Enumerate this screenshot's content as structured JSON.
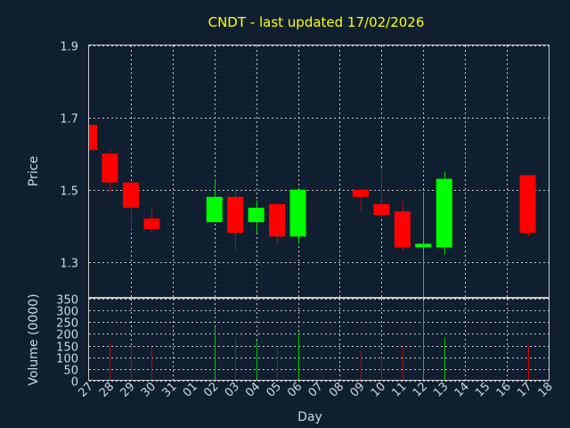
{
  "chart_data": [
    {
      "type": "candlestick",
      "title": "CNDT - last updated 17/02/2026",
      "ylabel": "Price",
      "ylim": [
        1.2,
        1.9
      ],
      "yticks": [
        "1.9",
        "1.7",
        "1.5",
        "1.3"
      ],
      "grid": true,
      "x": [
        "27",
        "28",
        "29",
        "30",
        "31",
        "01",
        "02",
        "03",
        "04",
        "05",
        "06",
        "07",
        "08",
        "09",
        "10",
        "11",
        "12",
        "13",
        "14",
        "15",
        "16",
        "17",
        "18"
      ],
      "candles": [
        {
          "x": "27",
          "open": 1.68,
          "high": 1.68,
          "low": 1.61,
          "close": 1.61
        },
        {
          "x": "28",
          "open": 1.6,
          "high": 1.61,
          "low": 1.49,
          "close": 1.52
        },
        {
          "x": "29",
          "open": 1.52,
          "high": 1.52,
          "low": 1.39,
          "close": 1.45
        },
        {
          "x": "30",
          "open": 1.42,
          "high": 1.45,
          "low": 1.38,
          "close": 1.39
        },
        {
          "x": "02",
          "open": 1.41,
          "high": 1.53,
          "low": 1.41,
          "close": 1.48
        },
        {
          "x": "03",
          "open": 1.48,
          "high": 1.5,
          "low": 1.33,
          "close": 1.38
        },
        {
          "x": "04",
          "open": 1.41,
          "high": 1.47,
          "low": 1.38,
          "close": 1.45
        },
        {
          "x": "05",
          "open": 1.46,
          "high": 1.46,
          "low": 1.35,
          "close": 1.37
        },
        {
          "x": "06",
          "open": 1.37,
          "high": 1.5,
          "low": 1.35,
          "close": 1.5
        },
        {
          "x": "09",
          "open": 1.5,
          "high": 1.5,
          "low": 1.44,
          "close": 1.48
        },
        {
          "x": "10",
          "open": 1.46,
          "high": 1.56,
          "low": 1.42,
          "close": 1.43
        },
        {
          "x": "11",
          "open": 1.44,
          "high": 1.47,
          "low": 1.33,
          "close": 1.34
        },
        {
          "x": "12",
          "open": 1.34,
          "high": 1.49,
          "low": 1.18,
          "close": 1.35
        },
        {
          "x": "13",
          "open": 1.34,
          "high": 1.55,
          "low": 1.32,
          "close": 1.53
        },
        {
          "x": "17",
          "open": 1.54,
          "high": 1.54,
          "low": 1.37,
          "close": 1.38
        }
      ]
    },
    {
      "type": "bar",
      "ylabel": "Volume (0000)",
      "xlabel": "Day",
      "ylim": [
        0,
        350
      ],
      "yticks": [
        "350",
        "300",
        "250",
        "200",
        "150",
        "100",
        "50",
        "0"
      ],
      "x": [
        "27",
        "28",
        "29",
        "30",
        "31",
        "01",
        "02",
        "03",
        "04",
        "05",
        "06",
        "07",
        "08",
        "09",
        "10",
        "11",
        "12",
        "13",
        "14",
        "15",
        "16",
        "17",
        "18"
      ],
      "bars": [
        {
          "x": "27",
          "value": 0,
          "dir": "down"
        },
        {
          "x": "28",
          "value": 165,
          "dir": "down"
        },
        {
          "x": "29",
          "value": 150,
          "dir": "down"
        },
        {
          "x": "30",
          "value": 145,
          "dir": "down"
        },
        {
          "x": "02",
          "value": 230,
          "dir": "up"
        },
        {
          "x": "03",
          "value": 185,
          "dir": "down"
        },
        {
          "x": "04",
          "value": 170,
          "dir": "up"
        },
        {
          "x": "05",
          "value": 140,
          "dir": "down"
        },
        {
          "x": "06",
          "value": 205,
          "dir": "up"
        },
        {
          "x": "09",
          "value": 125,
          "dir": "down"
        },
        {
          "x": "10",
          "value": 100,
          "dir": "down"
        },
        {
          "x": "11",
          "value": 150,
          "dir": "down"
        },
        {
          "x": "12",
          "value": 340,
          "dir": "up"
        },
        {
          "x": "13",
          "value": 185,
          "dir": "up"
        },
        {
          "x": "17",
          "value": 150,
          "dir": "down"
        }
      ]
    }
  ],
  "colors": {
    "background": "#0f1f2f",
    "title": "#ffff00",
    "up": "#00ff00",
    "down": "#ff0000",
    "text": "#c8d8e8"
  }
}
